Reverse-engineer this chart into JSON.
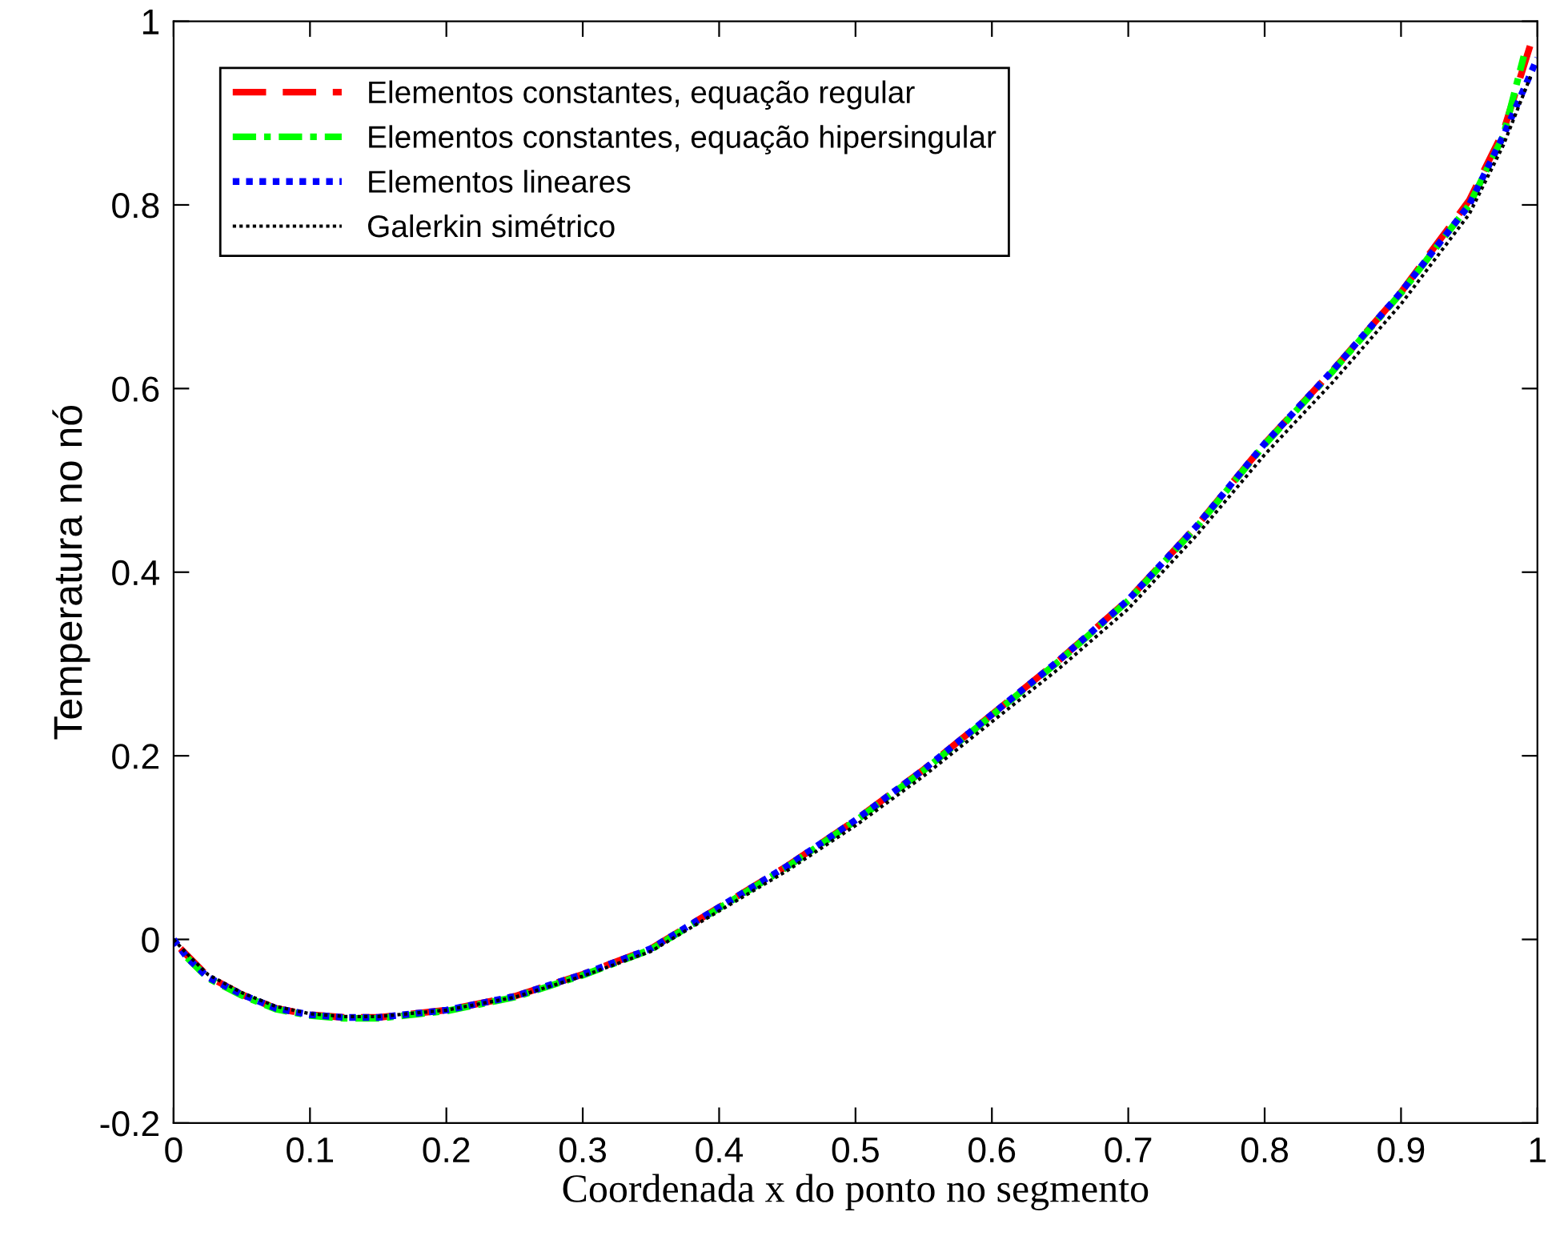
{
  "chart_data": {
    "type": "line",
    "xlabel": "Coordenada x do ponto no segmento",
    "ylabel": "Temperatura no nó",
    "xlim": [
      0,
      1
    ],
    "ylim": [
      -0.2,
      1
    ],
    "xticks": [
      0,
      0.1,
      0.2,
      0.3,
      0.4,
      0.5,
      0.6,
      0.7,
      0.8,
      0.9,
      1
    ],
    "yticks": [
      -0.2,
      0,
      0.2,
      0.4,
      0.6,
      0.8,
      1
    ],
    "grid": false,
    "legend": "top left",
    "series": [
      {
        "name": "Elementos constantes, equação regular",
        "color": "#ff0000",
        "line_style": "dashed",
        "x": [
          0.005,
          0.025,
          0.05,
          0.075,
          0.1,
          0.125,
          0.15,
          0.2,
          0.25,
          0.3,
          0.35,
          0.4,
          0.45,
          0.5,
          0.55,
          0.6,
          0.65,
          0.7,
          0.75,
          0.8,
          0.85,
          0.9,
          0.95,
          0.975,
          0.995
        ],
        "values": [
          -0.01,
          -0.04,
          -0.06,
          -0.075,
          -0.082,
          -0.085,
          -0.085,
          -0.077,
          -0.062,
          -0.038,
          -0.01,
          0.035,
          0.08,
          0.13,
          0.185,
          0.245,
          0.305,
          0.37,
          0.45,
          0.54,
          0.62,
          0.705,
          0.805,
          0.88,
          0.975
        ]
      },
      {
        "name": "Elementos constantes, equação hipersingular",
        "color": "#00ff00",
        "line_style": "dashdot",
        "x": [
          0.01,
          0.025,
          0.05,
          0.075,
          0.1,
          0.125,
          0.15,
          0.2,
          0.25,
          0.3,
          0.35,
          0.4,
          0.45,
          0.5,
          0.55,
          0.6,
          0.65,
          0.7,
          0.75,
          0.8,
          0.85,
          0.9,
          0.95,
          0.975,
          0.99
        ],
        "values": [
          -0.02,
          -0.042,
          -0.061,
          -0.076,
          -0.083,
          -0.086,
          -0.086,
          -0.078,
          -0.063,
          -0.039,
          -0.011,
          0.034,
          0.079,
          0.129,
          0.184,
          0.244,
          0.304,
          0.369,
          0.449,
          0.539,
          0.619,
          0.704,
          0.8,
          0.875,
          0.962
        ]
      },
      {
        "name": "Elementos lineares",
        "color": "#0000ff",
        "line_style": "dotted",
        "x": [
          0,
          0.01,
          0.025,
          0.05,
          0.075,
          0.1,
          0.125,
          0.15,
          0.2,
          0.25,
          0.3,
          0.35,
          0.4,
          0.45,
          0.5,
          0.55,
          0.6,
          0.65,
          0.7,
          0.75,
          0.8,
          0.85,
          0.9,
          0.95,
          0.975,
          1
        ],
        "values": [
          0,
          -0.02,
          -0.041,
          -0.06,
          -0.075,
          -0.082,
          -0.085,
          -0.085,
          -0.077,
          -0.062,
          -0.038,
          -0.01,
          0.035,
          0.08,
          0.13,
          0.185,
          0.245,
          0.305,
          0.37,
          0.45,
          0.54,
          0.62,
          0.705,
          0.8,
          0.875,
          0.96
        ]
      },
      {
        "name": "Galerkin simétrico",
        "color": "#000000",
        "line_style": "dotted",
        "x": [
          0,
          0.01,
          0.025,
          0.05,
          0.075,
          0.1,
          0.125,
          0.15,
          0.2,
          0.25,
          0.3,
          0.35,
          0.4,
          0.45,
          0.5,
          0.55,
          0.6,
          0.65,
          0.7,
          0.75,
          0.8,
          0.85,
          0.9,
          0.95,
          0.975,
          0.995
        ],
        "values": [
          0,
          -0.016,
          -0.038,
          -0.058,
          -0.073,
          -0.081,
          -0.084,
          -0.084,
          -0.077,
          -0.063,
          -0.04,
          -0.013,
          0.031,
          0.075,
          0.124,
          0.178,
          0.237,
          0.296,
          0.36,
          0.44,
          0.528,
          0.607,
          0.692,
          0.79,
          0.865,
          0.94
        ]
      }
    ]
  }
}
